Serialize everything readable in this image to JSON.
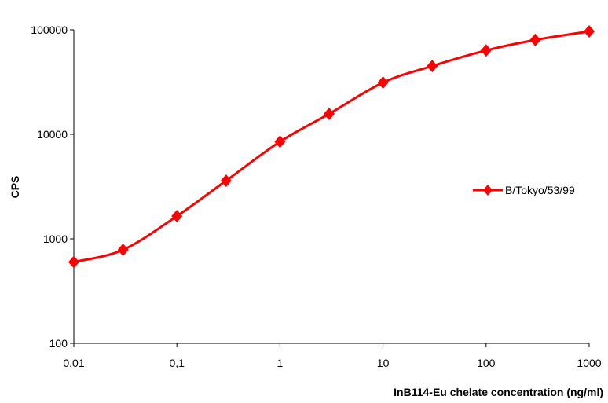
{
  "chart_data": {
    "type": "line",
    "title": "",
    "xlabel": "InB114-Eu chelate concentration (ng/ml)",
    "ylabel": "CPS",
    "xscale": "log",
    "yscale": "log",
    "xlim": [
      0.01,
      1000
    ],
    "ylim": [
      100,
      100000
    ],
    "x_ticks": [
      0.01,
      0.1,
      1,
      10,
      100,
      1000
    ],
    "x_tick_labels": [
      "0,01",
      "0,1",
      "1",
      "10",
      "100",
      "1000"
    ],
    "y_ticks": [
      100,
      1000,
      10000,
      100000
    ],
    "y_tick_labels": [
      "100",
      "1000",
      "10000",
      "100000"
    ],
    "grid": false,
    "legend_position": "right",
    "series": [
      {
        "name": "B/Tokyo/53/99",
        "color": "#ff0000",
        "marker": "diamond",
        "x": [
          0.01,
          0.03,
          0.1,
          0.3,
          1,
          3,
          10,
          30,
          100,
          300,
          1000
        ],
        "y": [
          600,
          785,
          1650,
          3600,
          8500,
          15700,
          31300,
          45000,
          63500,
          80000,
          96600
        ]
      }
    ]
  }
}
